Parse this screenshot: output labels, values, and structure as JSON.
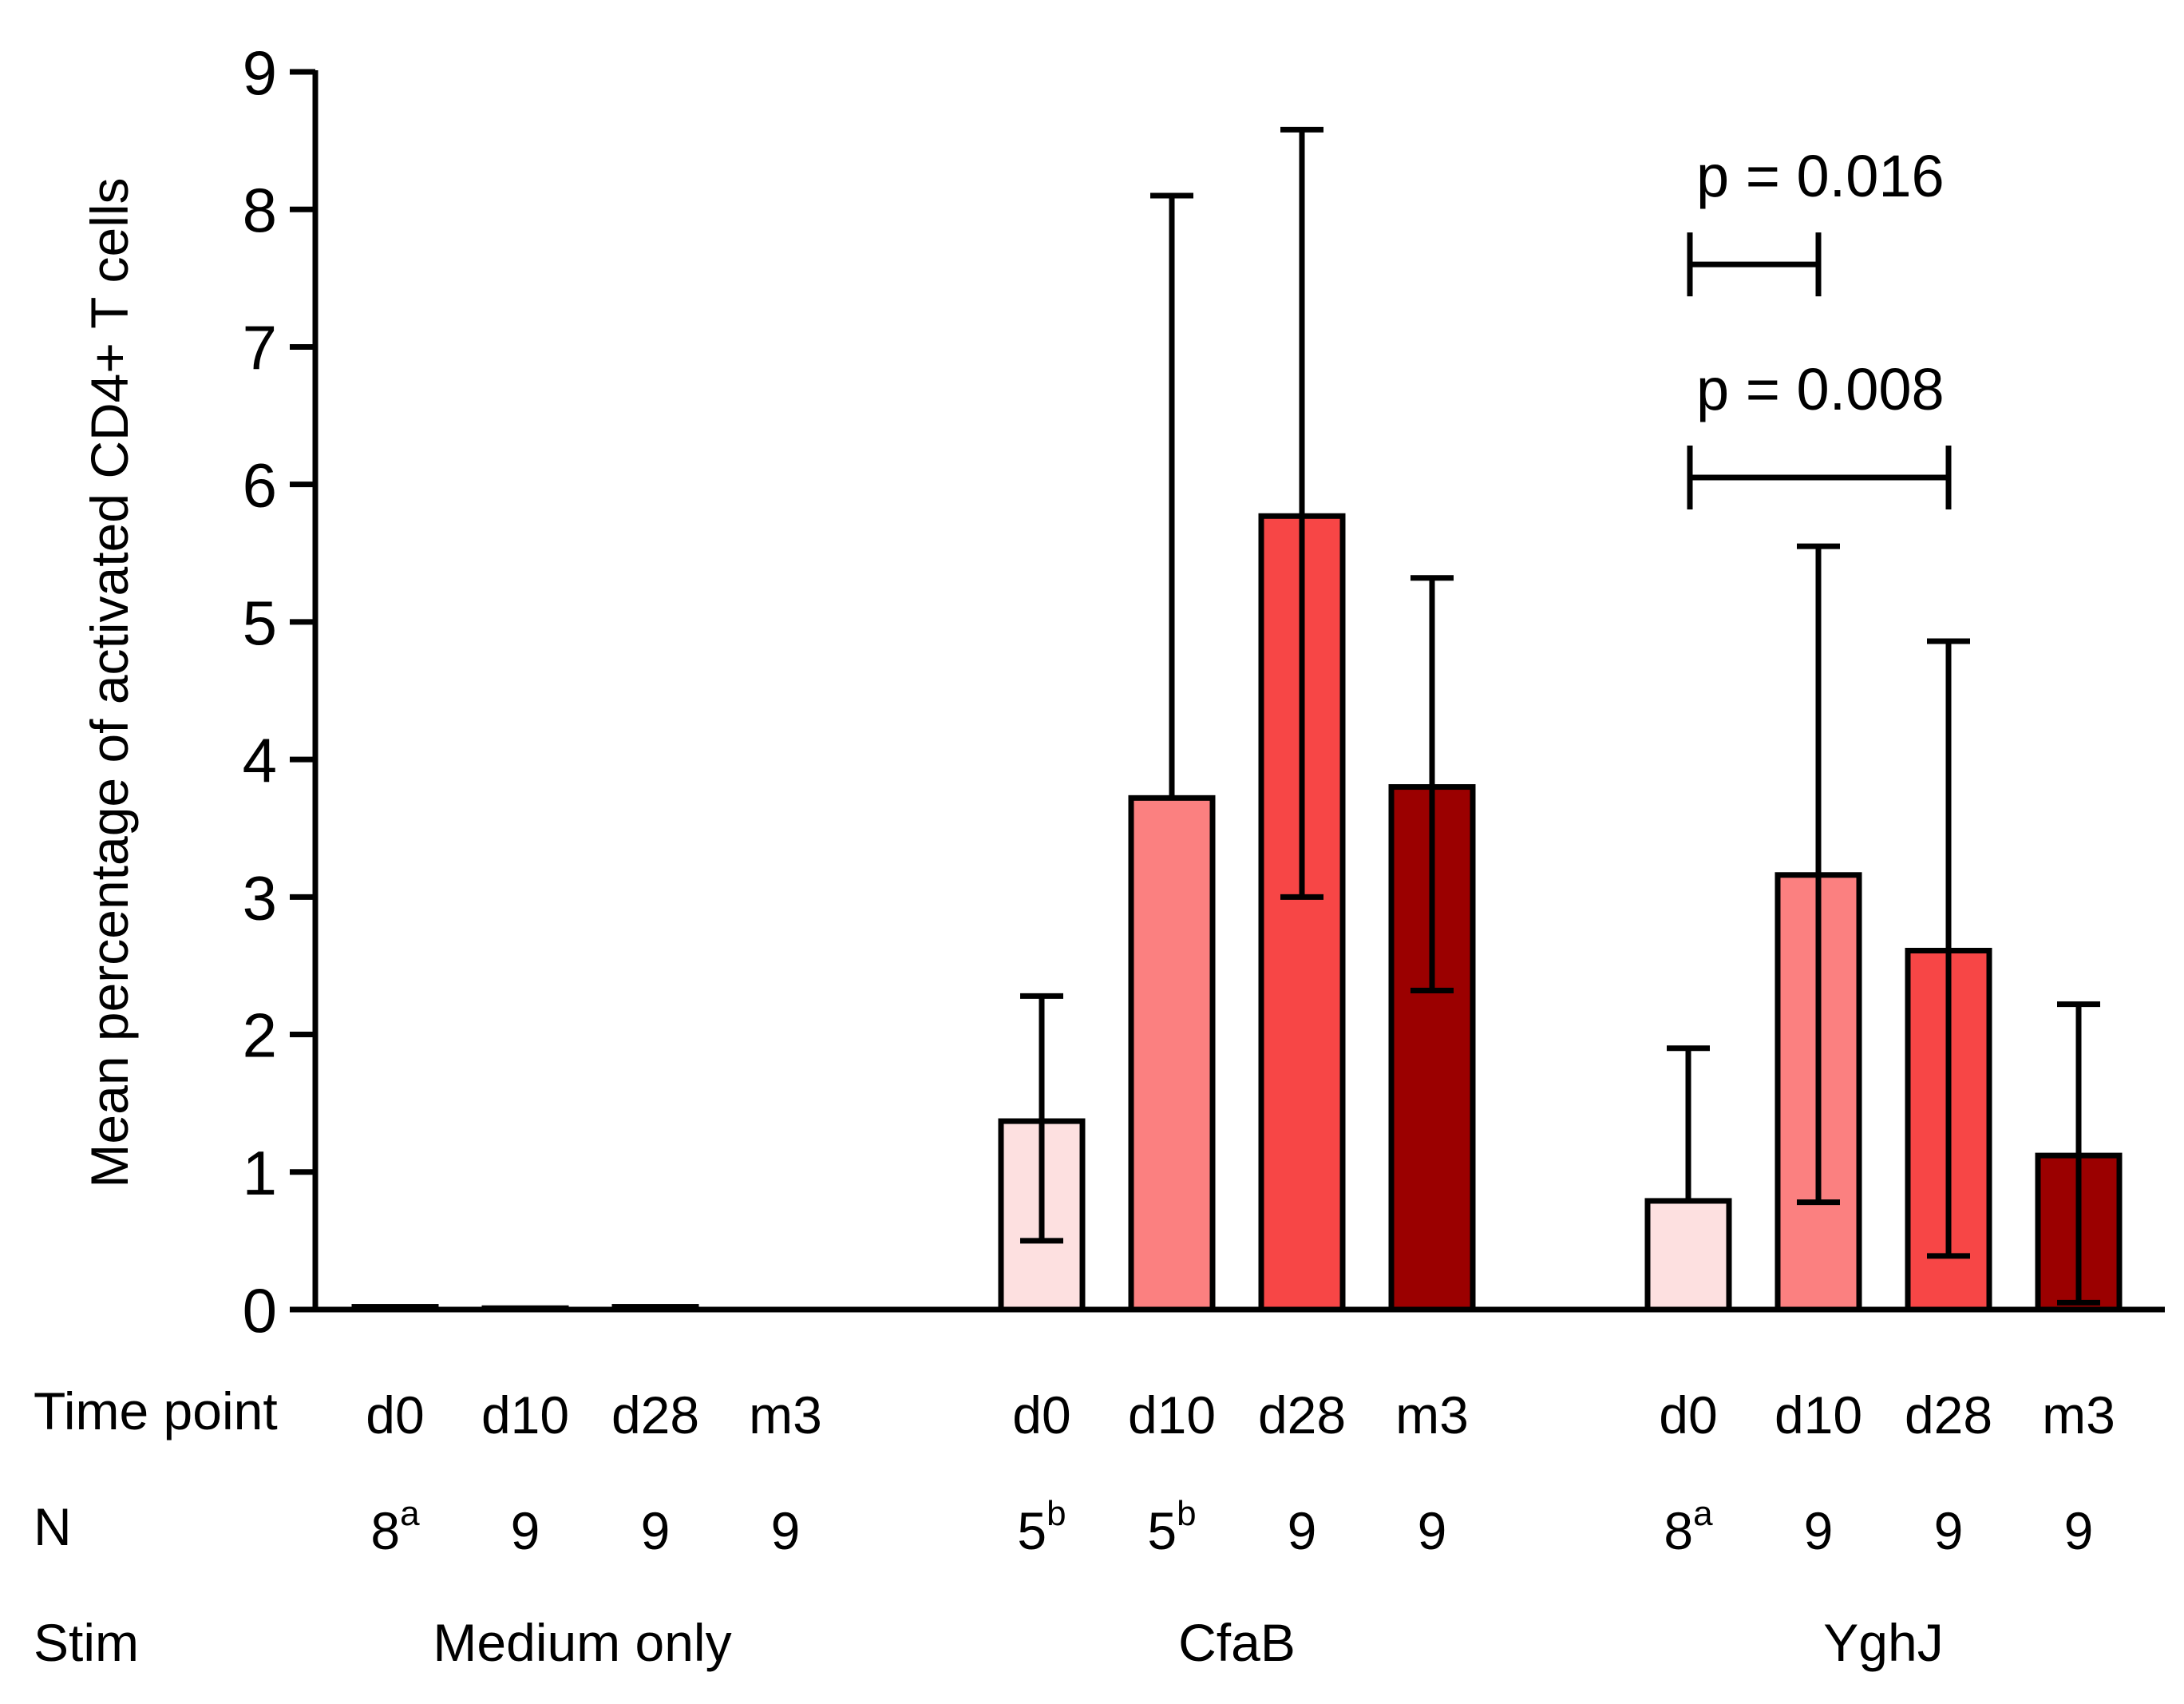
{
  "chart_data": {
    "type": "bar",
    "ylabel": "Mean percentage of activated CD4+ T cells",
    "ylim": [
      0,
      9
    ],
    "yticks": [
      "0",
      "1",
      "2",
      "3",
      "4",
      "5",
      "6",
      "7",
      "8",
      "9"
    ],
    "timepoint_colors": {
      "d0": "#fde0e0",
      "d10": "#fb8080",
      "d28": "#f74646",
      "m3": "#9b0000"
    },
    "groups": [
      {
        "stim": "Medium only",
        "bars": [
          {
            "time": "d0",
            "value": 0.02,
            "err_low": null,
            "err_high": null,
            "n": "8",
            "n_sup": "a"
          },
          {
            "time": "d10",
            "value": 0.01,
            "err_low": null,
            "err_high": null,
            "n": "9",
            "n_sup": ""
          },
          {
            "time": "d28",
            "value": 0.02,
            "err_low": null,
            "err_high": null,
            "n": "9",
            "n_sup": ""
          },
          {
            "time": "m3",
            "value": 0.0,
            "err_low": null,
            "err_high": null,
            "n": "9",
            "n_sup": ""
          }
        ]
      },
      {
        "stim": "CfaB",
        "bars": [
          {
            "time": "d0",
            "value": 1.37,
            "err_low": 0.5,
            "err_high": 2.28,
            "n": "5",
            "n_sup": "b"
          },
          {
            "time": "d10",
            "value": 3.72,
            "err_low": null,
            "err_high": 8.1,
            "n": "5",
            "n_sup": "b"
          },
          {
            "time": "d28",
            "value": 5.77,
            "err_low": 3.0,
            "err_high": 8.58,
            "n": "9",
            "n_sup": ""
          },
          {
            "time": "m3",
            "value": 3.8,
            "err_low": 2.32,
            "err_high": 5.32,
            "n": "9",
            "n_sup": ""
          }
        ]
      },
      {
        "stim": "YghJ",
        "bars": [
          {
            "time": "d0",
            "value": 0.79,
            "err_low": null,
            "err_high": 1.9,
            "n": "8",
            "n_sup": "a"
          },
          {
            "time": "d10",
            "value": 3.16,
            "err_low": 0.78,
            "err_high": 5.55,
            "n": "9",
            "n_sup": ""
          },
          {
            "time": "d28",
            "value": 2.61,
            "err_low": 0.39,
            "err_high": 4.86,
            "n": "9",
            "n_sup": ""
          },
          {
            "time": "m3",
            "value": 1.12,
            "err_low": 0.05,
            "err_high": 2.22,
            "n": "9",
            "n_sup": ""
          }
        ]
      }
    ],
    "comparisons": [
      {
        "group": "YghJ",
        "from": "d0",
        "to": "d10",
        "label": "p = 0.016",
        "y": 7.6
      },
      {
        "group": "YghJ",
        "from": "d0",
        "to": "d28",
        "label": "p = 0.008",
        "y": 6.05
      }
    ],
    "row_labels": {
      "time": "Time point",
      "n": "N",
      "stim": "Stim"
    }
  }
}
